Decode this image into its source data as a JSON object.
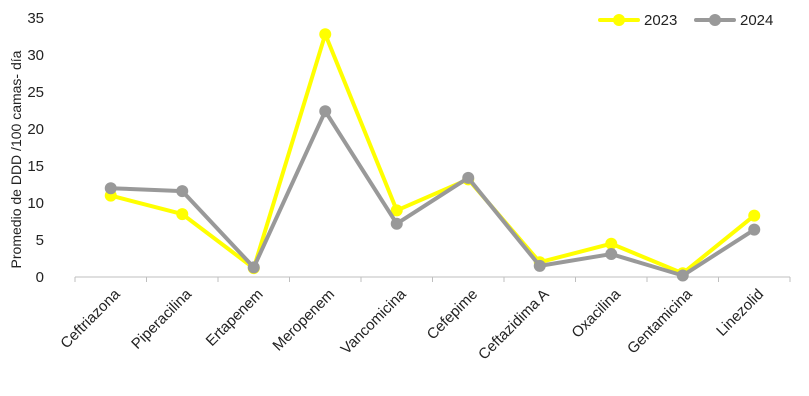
{
  "chart_data": {
    "type": "line",
    "title": "",
    "xlabel": "",
    "ylabel": "Promedio de DDD /100  camas- día",
    "ylim": [
      0,
      35
    ],
    "yticks": [
      0,
      5,
      10,
      15,
      20,
      25,
      30,
      35
    ],
    "grid": false,
    "legend_position": "top-right",
    "categories": [
      "Ceftriazona",
      "Piperacilina",
      "Ertapenem",
      "Meropenem",
      "Vancomicina",
      "Cefepime",
      "Ceftazidima A",
      "Oxacilina",
      "Gentamicina",
      "Linezolid"
    ],
    "series": [
      {
        "name": "2023",
        "color": "#ffff00",
        "values": [
          11.0,
          8.5,
          1.2,
          32.8,
          9.0,
          13.2,
          2.0,
          4.5,
          0.5,
          8.3
        ]
      },
      {
        "name": "2024",
        "color": "#999999",
        "values": [
          12.0,
          11.6,
          1.3,
          22.4,
          7.2,
          13.4,
          1.5,
          3.1,
          0.2,
          6.4
        ]
      }
    ]
  }
}
